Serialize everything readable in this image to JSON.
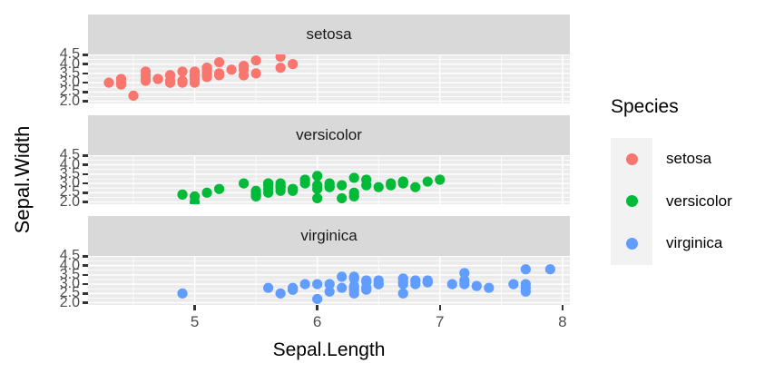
{
  "chart_data": {
    "type": "scatter",
    "title": "",
    "xlabel": "Sepal.Length",
    "ylabel": "Sepal.Width",
    "xlim": [
      4.13,
      8.06
    ],
    "ylim": [
      1.88,
      4.52
    ],
    "x_ticks": [
      5,
      6,
      7,
      8
    ],
    "x_tick_labels": [
      "5",
      "6",
      "7",
      "8"
    ],
    "x_minor": [
      4.5,
      5.5,
      6.5,
      7.5
    ],
    "y_ticks": [
      4.5,
      4.0,
      3.5,
      3.0,
      2.5,
      2.0
    ],
    "y_tick_labels": [
      "4.5",
      "4.0",
      "3.5",
      "3.0",
      "2.5",
      "2.0"
    ],
    "y_minor": [
      2.25,
      2.75,
      3.25,
      3.75,
      4.25
    ],
    "grid": true,
    "legend_position": "right",
    "facets": [
      {
        "label": "setosa",
        "color": "#F8766D",
        "points": [
          [
            5.1,
            3.5
          ],
          [
            4.9,
            3.0
          ],
          [
            4.7,
            3.2
          ],
          [
            4.6,
            3.1
          ],
          [
            5.0,
            3.6
          ],
          [
            5.4,
            3.9
          ],
          [
            4.6,
            3.4
          ],
          [
            5.0,
            3.4
          ],
          [
            4.4,
            2.9
          ],
          [
            4.9,
            3.1
          ],
          [
            5.4,
            3.7
          ],
          [
            4.8,
            3.4
          ],
          [
            4.8,
            3.0
          ],
          [
            4.3,
            3.0
          ],
          [
            5.8,
            4.0
          ],
          [
            5.7,
            4.4
          ],
          [
            5.4,
            3.9
          ],
          [
            5.1,
            3.5
          ],
          [
            5.7,
            3.8
          ],
          [
            5.1,
            3.8
          ],
          [
            5.4,
            3.4
          ],
          [
            5.1,
            3.7
          ],
          [
            4.6,
            3.6
          ],
          [
            5.1,
            3.3
          ],
          [
            4.8,
            3.4
          ],
          [
            5.0,
            3.0
          ],
          [
            5.0,
            3.4
          ],
          [
            5.2,
            3.5
          ],
          [
            5.2,
            3.4
          ],
          [
            4.7,
            3.2
          ],
          [
            4.8,
            3.1
          ],
          [
            5.4,
            3.4
          ],
          [
            5.2,
            4.1
          ],
          [
            5.5,
            4.2
          ],
          [
            4.9,
            3.1
          ],
          [
            5.0,
            3.2
          ],
          [
            5.5,
            3.5
          ],
          [
            4.9,
            3.6
          ],
          [
            4.4,
            3.0
          ],
          [
            5.1,
            3.4
          ],
          [
            5.0,
            3.5
          ],
          [
            4.5,
            2.3
          ],
          [
            4.4,
            3.2
          ],
          [
            5.0,
            3.5
          ],
          [
            5.1,
            3.8
          ],
          [
            4.8,
            3.0
          ],
          [
            5.1,
            3.8
          ],
          [
            4.6,
            3.2
          ],
          [
            5.3,
            3.7
          ],
          [
            5.0,
            3.3
          ]
        ]
      },
      {
        "label": "versicolor",
        "color": "#00BA38",
        "points": [
          [
            7.0,
            3.2
          ],
          [
            6.4,
            3.2
          ],
          [
            6.9,
            3.1
          ],
          [
            5.5,
            2.3
          ],
          [
            6.5,
            2.8
          ],
          [
            5.7,
            2.8
          ],
          [
            6.3,
            3.3
          ],
          [
            4.9,
            2.4
          ],
          [
            6.6,
            2.9
          ],
          [
            5.2,
            2.7
          ],
          [
            5.0,
            2.0
          ],
          [
            5.9,
            3.0
          ],
          [
            6.0,
            2.2
          ],
          [
            6.1,
            2.9
          ],
          [
            5.6,
            2.9
          ],
          [
            6.7,
            3.1
          ],
          [
            5.6,
            3.0
          ],
          [
            5.8,
            2.7
          ],
          [
            6.2,
            2.2
          ],
          [
            5.6,
            2.5
          ],
          [
            5.9,
            3.2
          ],
          [
            6.1,
            2.8
          ],
          [
            6.3,
            2.5
          ],
          [
            6.1,
            2.8
          ],
          [
            6.4,
            2.9
          ],
          [
            6.6,
            3.0
          ],
          [
            6.8,
            2.8
          ],
          [
            6.7,
            3.0
          ],
          [
            6.0,
            2.9
          ],
          [
            5.7,
            2.6
          ],
          [
            5.5,
            2.4
          ],
          [
            5.5,
            2.4
          ],
          [
            5.8,
            2.7
          ],
          [
            6.0,
            2.7
          ],
          [
            5.4,
            3.0
          ],
          [
            6.0,
            3.4
          ],
          [
            6.7,
            3.1
          ],
          [
            6.3,
            2.3
          ],
          [
            5.6,
            3.0
          ],
          [
            5.5,
            2.5
          ],
          [
            5.5,
            2.6
          ],
          [
            6.1,
            3.0
          ],
          [
            5.8,
            2.6
          ],
          [
            5.0,
            2.3
          ],
          [
            5.6,
            2.7
          ],
          [
            5.7,
            3.0
          ],
          [
            5.7,
            2.9
          ],
          [
            6.2,
            2.9
          ],
          [
            5.1,
            2.5
          ],
          [
            5.7,
            2.8
          ]
        ]
      },
      {
        "label": "virginica",
        "color": "#619CFF",
        "points": [
          [
            6.3,
            3.3
          ],
          [
            5.8,
            2.7
          ],
          [
            7.1,
            3.0
          ],
          [
            6.3,
            2.9
          ],
          [
            6.5,
            3.0
          ],
          [
            7.6,
            3.0
          ],
          [
            4.9,
            2.5
          ],
          [
            7.3,
            2.9
          ],
          [
            6.7,
            2.5
          ],
          [
            7.2,
            3.6
          ],
          [
            6.5,
            3.2
          ],
          [
            6.4,
            2.7
          ],
          [
            6.8,
            3.0
          ],
          [
            5.7,
            2.5
          ],
          [
            5.8,
            2.8
          ],
          [
            6.4,
            3.2
          ],
          [
            6.5,
            3.0
          ],
          [
            7.7,
            3.8
          ],
          [
            7.7,
            2.6
          ],
          [
            6.0,
            2.2
          ],
          [
            6.9,
            3.2
          ],
          [
            5.6,
            2.8
          ],
          [
            7.7,
            2.8
          ],
          [
            6.3,
            2.7
          ],
          [
            6.7,
            3.3
          ],
          [
            7.2,
            3.2
          ],
          [
            6.2,
            2.8
          ],
          [
            6.1,
            3.0
          ],
          [
            6.4,
            2.8
          ],
          [
            7.2,
            3.0
          ],
          [
            7.4,
            2.8
          ],
          [
            7.9,
            3.8
          ],
          [
            6.4,
            2.8
          ],
          [
            6.3,
            2.8
          ],
          [
            6.1,
            2.6
          ],
          [
            7.7,
            3.0
          ],
          [
            6.3,
            3.4
          ],
          [
            6.4,
            3.1
          ],
          [
            6.0,
            3.0
          ],
          [
            6.9,
            3.1
          ],
          [
            6.7,
            3.1
          ],
          [
            6.9,
            3.1
          ],
          [
            5.8,
            2.7
          ],
          [
            6.8,
            3.2
          ],
          [
            6.7,
            3.3
          ],
          [
            6.7,
            3.0
          ],
          [
            6.3,
            2.5
          ],
          [
            6.5,
            3.0
          ],
          [
            6.2,
            3.4
          ],
          [
            5.9,
            3.0
          ]
        ]
      }
    ]
  },
  "legend": {
    "title": "Species",
    "entries": [
      {
        "label": "setosa",
        "color": "#F8766D"
      },
      {
        "label": "versicolor",
        "color": "#00BA38"
      },
      {
        "label": "virginica",
        "color": "#619CFF"
      }
    ]
  },
  "colors": {
    "panel_bg": "#EBEBEB",
    "strip_bg": "#D9D9D9",
    "gridline": "#FFFFFF",
    "legend_key_bg": "#F2F2F2",
    "axis_text": "#4D4D4D",
    "tick_mark": "#333333",
    "strip_text": "#1A1A1A",
    "title_text": "#000000"
  }
}
